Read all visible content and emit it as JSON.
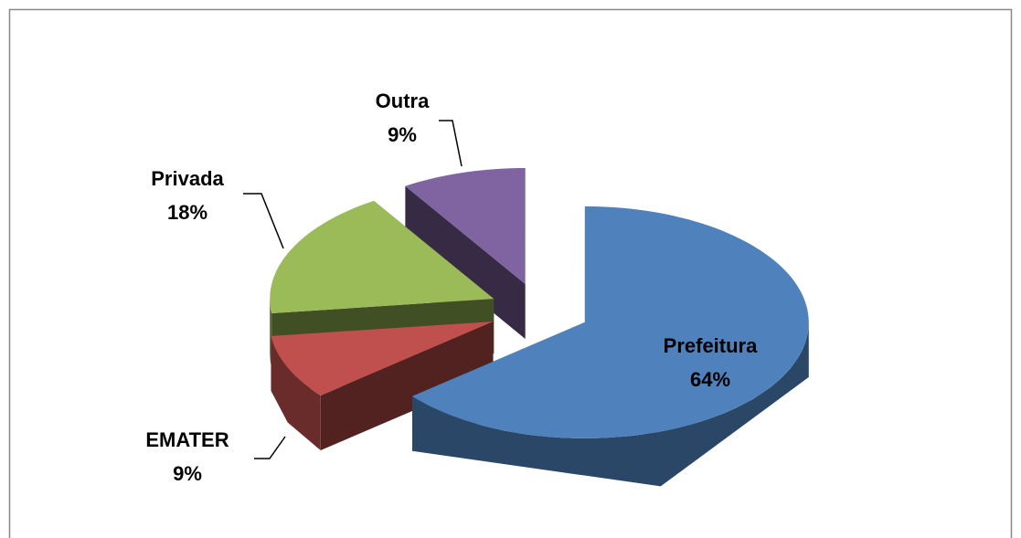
{
  "chart_data": {
    "type": "pie",
    "categories": [
      "Prefeitura",
      "EMATER",
      "Privada",
      "Outra"
    ],
    "values": [
      64,
      9,
      18,
      9
    ],
    "value_labels": [
      "64%",
      "9%",
      "18%",
      "9%"
    ],
    "colors": [
      "#4f81bd",
      "#c0504d",
      "#9bbb59",
      "#8064a2"
    ]
  }
}
